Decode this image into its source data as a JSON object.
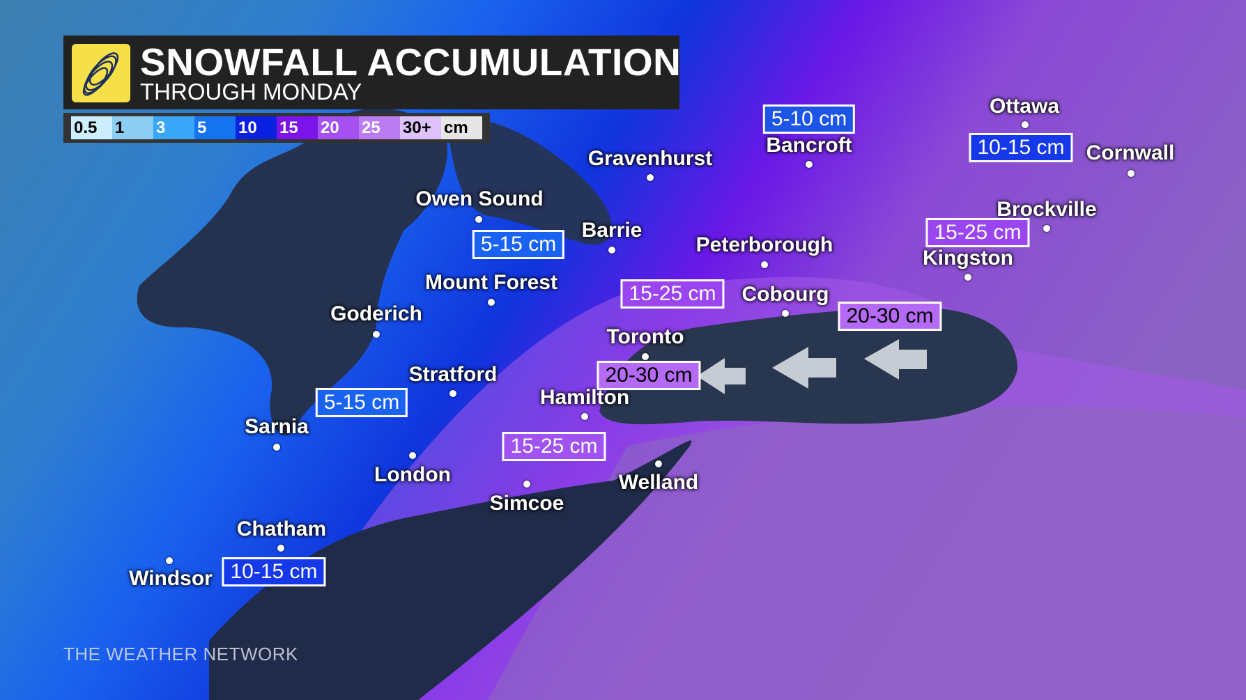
{
  "header": {
    "title": "SNOWFALL ACCUMULATION",
    "subtitle": "THROUGH MONDAY",
    "logo_icon": "weather-network-globe-logo"
  },
  "legend": {
    "items": [
      {
        "label": "0.5",
        "color": "#cdeefc",
        "text": "#000"
      },
      {
        "label": "1",
        "color": "#8ccdf2",
        "text": "#000"
      },
      {
        "label": "3",
        "color": "#3aa6f7",
        "text": "#fff"
      },
      {
        "label": "5",
        "color": "#1673f0",
        "text": "#fff"
      },
      {
        "label": "10",
        "color": "#0a22e0",
        "text": "#fff"
      },
      {
        "label": "15",
        "color": "#7a14e8",
        "text": "#fff"
      },
      {
        "label": "20",
        "color": "#a550f0",
        "text": "#fff"
      },
      {
        "label": "25",
        "color": "#bb7cf2",
        "text": "#fff"
      },
      {
        "label": "30+",
        "color": "#dcc2f8",
        "text": "#000"
      },
      {
        "label": "cm",
        "color": "#e6e6e6",
        "text": "#000"
      }
    ]
  },
  "cities": [
    {
      "name": "Ottawa"
    },
    {
      "name": "Cornwall"
    },
    {
      "name": "Bancroft"
    },
    {
      "name": "Gravenhurst"
    },
    {
      "name": "Owen Sound"
    },
    {
      "name": "Barrie"
    },
    {
      "name": "Peterborough"
    },
    {
      "name": "Brockville"
    },
    {
      "name": "Kingston"
    },
    {
      "name": "Cobourg"
    },
    {
      "name": "Mount Forest"
    },
    {
      "name": "Goderich"
    },
    {
      "name": "Toronto"
    },
    {
      "name": "Stratford"
    },
    {
      "name": "Hamilton"
    },
    {
      "name": "Sarnia"
    },
    {
      "name": "London"
    },
    {
      "name": "Simcoe"
    },
    {
      "name": "Welland"
    },
    {
      "name": "Chatham"
    },
    {
      "name": "Windsor"
    }
  ],
  "amounts": [
    {
      "label": "5-10 cm",
      "color": "#1d55e6"
    },
    {
      "label": "10-15 cm",
      "color": "#1538e8"
    },
    {
      "label": "15-25 cm",
      "color": "#9b45f0"
    },
    {
      "label": "5-15 cm",
      "color": "#1a62f0"
    },
    {
      "label": "15-25 cm",
      "color": "#9b45f0"
    },
    {
      "label": "20-30 cm",
      "color": "#b46af5"
    },
    {
      "label": "20-30 cm",
      "color": "#b46af5"
    },
    {
      "label": "5-15 cm",
      "color": "#1a62f0"
    },
    {
      "label": "15-25 cm",
      "color": "#a052f2"
    },
    {
      "label": "10-15 cm",
      "color": "#1538e8"
    }
  ],
  "wind_arrows_icon": "arrow-left-icon",
  "brand": "THE WEATHER NETWORK"
}
